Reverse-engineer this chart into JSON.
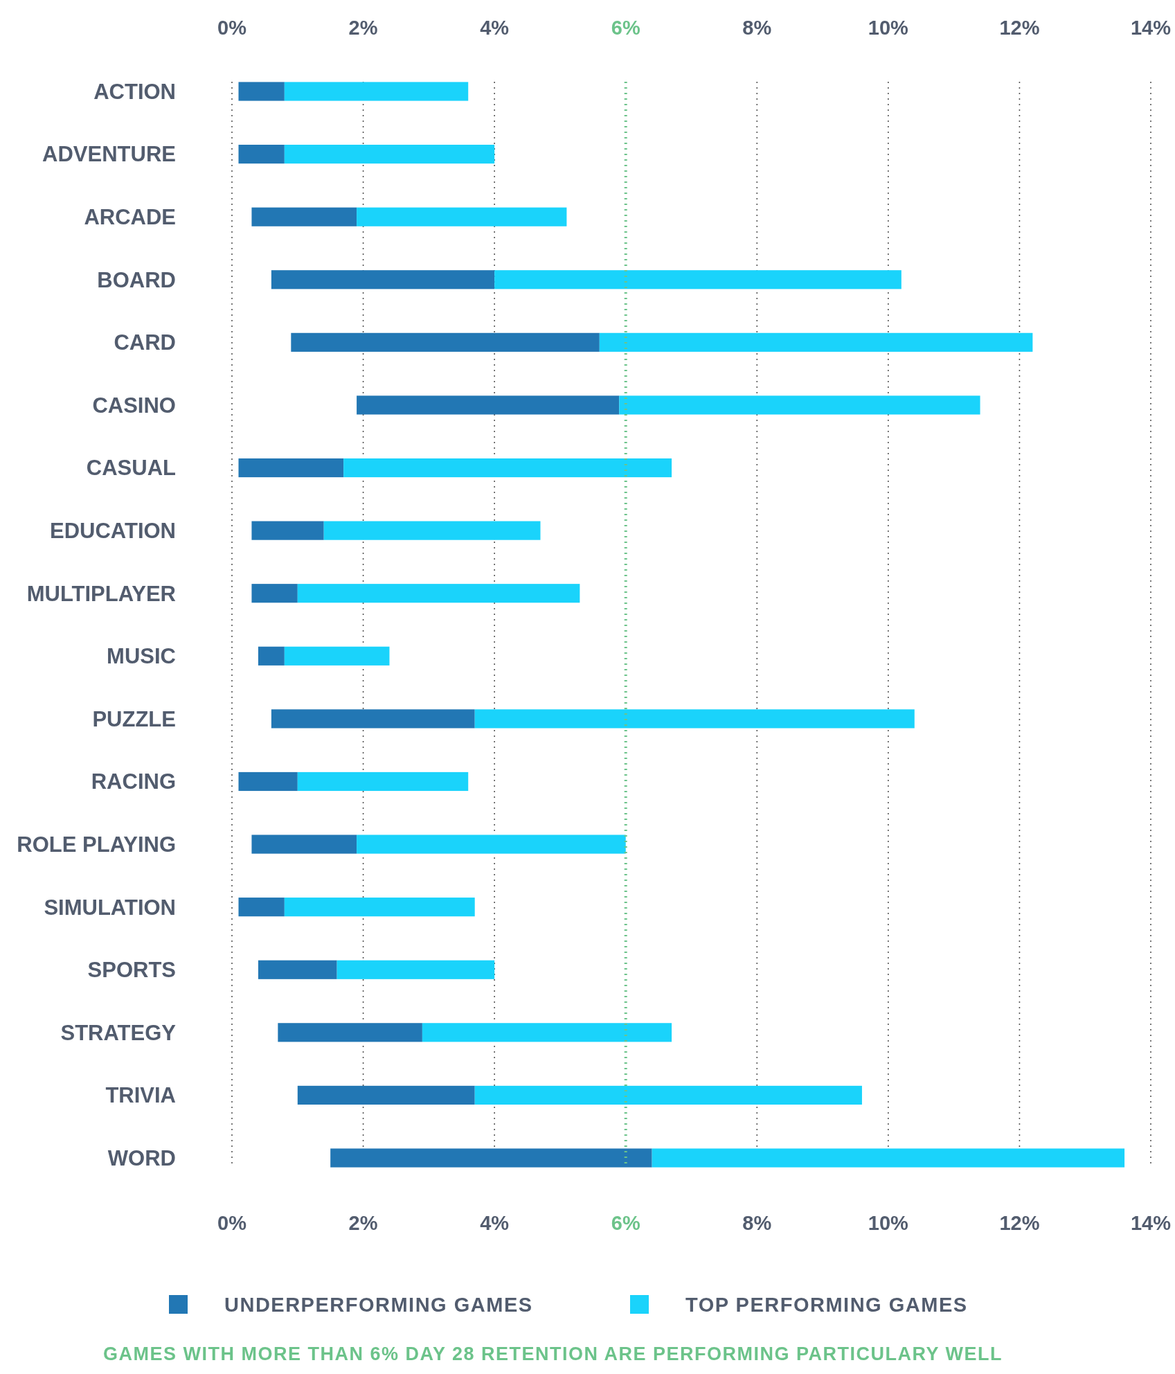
{
  "chart_data": {
    "type": "bar",
    "orientation": "horizontal",
    "categories": [
      "ACTION",
      "ADVENTURE",
      "ARCADE",
      "BOARD",
      "CARD",
      "CASINO",
      "CASUAL",
      "EDUCATION",
      "MULTIPLAYER",
      "MUSIC",
      "PUZZLE",
      "RACING",
      "ROLE PLAYING",
      "SIMULATION",
      "SPORTS",
      "STRATEGY",
      "TRIVIA",
      "WORD"
    ],
    "series": [
      {
        "name": "UNDERPERFORMING GAMES",
        "color": "#2277b4",
        "base": [
          0.1,
          0.1,
          0.3,
          0.6,
          0.9,
          1.9,
          0.1,
          0.3,
          0.3,
          0.4,
          0.6,
          0.1,
          0.3,
          0.1,
          0.4,
          0.7,
          1.0,
          1.5
        ],
        "values": [
          0.7,
          0.7,
          1.6,
          3.4,
          4.7,
          4.0,
          1.6,
          1.1,
          0.7,
          0.4,
          3.1,
          0.9,
          1.6,
          0.7,
          1.2,
          2.2,
          2.7,
          4.9
        ]
      },
      {
        "name": "TOP PERFORMING GAMES",
        "color": "#1ad3fb",
        "base": [
          0.8,
          0.8,
          1.9,
          4.0,
          5.6,
          5.9,
          1.7,
          1.4,
          1.0,
          0.8,
          3.7,
          1.0,
          1.9,
          0.8,
          1.6,
          2.9,
          3.7,
          6.4
        ],
        "values": [
          2.8,
          3.2,
          3.2,
          6.2,
          6.6,
          5.5,
          5.0,
          3.3,
          4.3,
          1.6,
          6.7,
          2.6,
          4.1,
          2.9,
          2.4,
          3.8,
          5.9,
          7.2
        ]
      }
    ],
    "xlim": [
      0,
      14
    ],
    "xticks": [
      {
        "value": 0,
        "label": "0%"
      },
      {
        "value": 2,
        "label": "2%"
      },
      {
        "value": 4,
        "label": "4%"
      },
      {
        "value": 6,
        "label": "6%"
      },
      {
        "value": 8,
        "label": "8%"
      },
      {
        "value": 10,
        "label": "10%"
      },
      {
        "value": 12,
        "label": "12%"
      },
      {
        "value": 14,
        "label": "14%"
      }
    ],
    "x2lim": [
      0,
      14
    ],
    "x2ticks": [
      {
        "value": 0,
        "label": "0%"
      },
      {
        "value": 2,
        "label": "2%"
      },
      {
        "value": 4,
        "label": "4%"
      },
      {
        "value": 6,
        "label": "6%"
      },
      {
        "value": 8,
        "label": "8%"
      },
      {
        "value": 10,
        "label": "10%"
      },
      {
        "value": 12,
        "label": "12%"
      },
      {
        "value": 14,
        "label": "14%"
      }
    ],
    "grid": "x",
    "ref_lines": [
      {
        "axis": "x",
        "value": 6,
        "color": "#6cc38a",
        "line_style": "dotted"
      }
    ],
    "legend": "bottom",
    "annotations": [
      "GAMES WITH MORE THAN 6% DAY 28 RETENTION ARE PERFORMING PARTICULARY WELL"
    ]
  }
}
